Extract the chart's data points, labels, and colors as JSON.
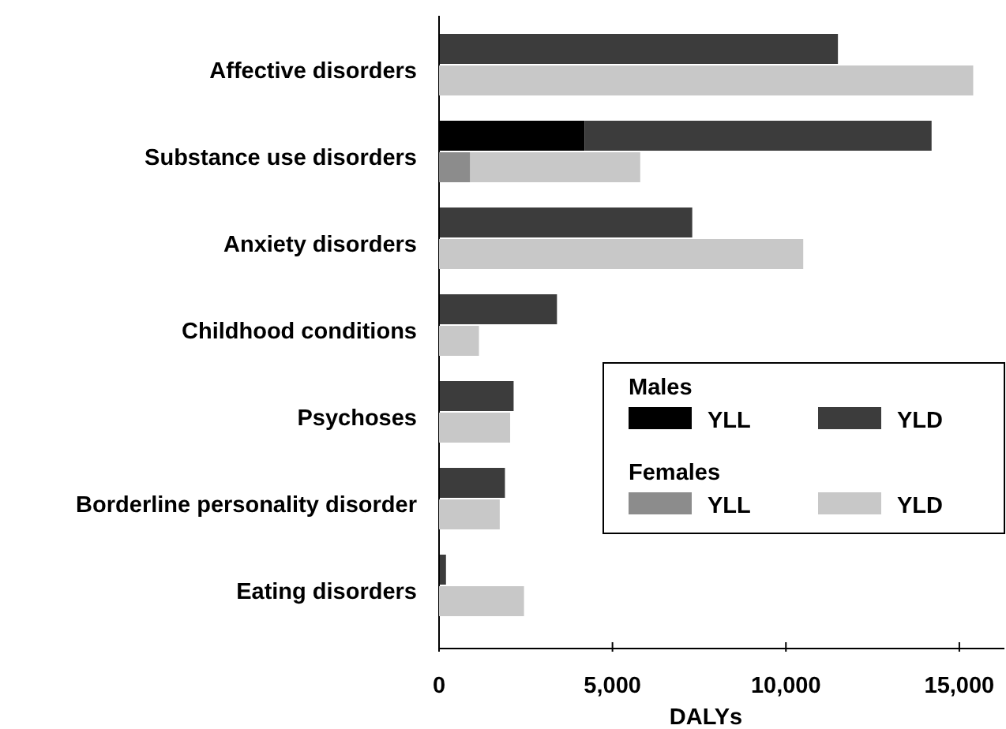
{
  "chart_data": [
    {
      "type": "bar",
      "orientation": "horizontal",
      "stacked": true,
      "xlabel": "DALYs",
      "legend_title": "Males",
      "categories": [
        "Affective disorders",
        "Substance use disorders",
        "Anxiety disorders",
        "Childhood conditions",
        "Psychoses",
        "Borderline personality disorder",
        "Eating disorders"
      ],
      "series": [
        {
          "name": "YLL",
          "color": "#000000",
          "values": [
            0,
            4200,
            0,
            0,
            0,
            0,
            0
          ]
        },
        {
          "name": "YLD",
          "color": "#3c3c3c",
          "values": [
            11500,
            10000,
            7300,
            3400,
            2150,
            1900,
            200
          ]
        }
      ],
      "xlim": [
        0,
        16300
      ],
      "xticks": [
        {
          "value": 0,
          "label": "0"
        },
        {
          "value": 5000,
          "label": "5,000"
        },
        {
          "value": 10000,
          "label": "10,000"
        },
        {
          "value": 15000,
          "label": "15,000"
        }
      ],
      "legend": "right"
    },
    {
      "type": "bar",
      "orientation": "horizontal",
      "stacked": true,
      "legend_title": "Females",
      "tick_labels": false,
      "categories": [
        null,
        null,
        null,
        null,
        null,
        null,
        null
      ],
      "series": [
        {
          "name": "YLL",
          "color": "#8c8c8c",
          "values": [
            0,
            900,
            0,
            0,
            0,
            0,
            0
          ]
        },
        {
          "name": "YLD",
          "color": "#c8c8c8",
          "values": [
            15400,
            4900,
            10500,
            1150,
            2050,
            1750,
            2450
          ]
        }
      ],
      "xlim": [
        0,
        16300
      ],
      "legend": "right"
    }
  ]
}
